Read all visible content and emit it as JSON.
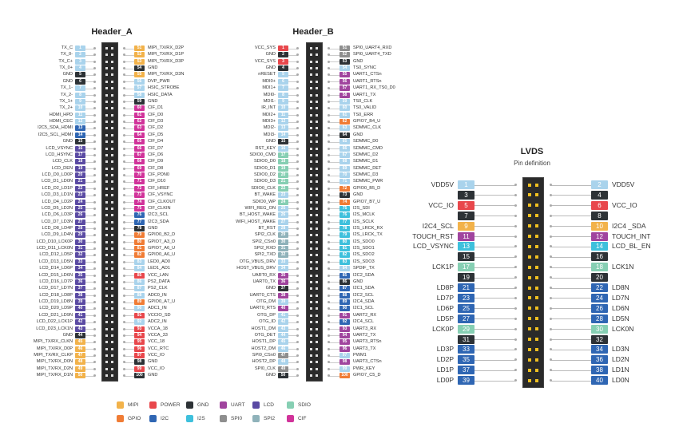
{
  "colors": {
    "MIPI": "#f2b24a",
    "POWER": "#e8474c",
    "GND": "#2d3236",
    "UART": "#a0449e",
    "LCD": "#5a4aa3",
    "SDIO": "#86cfb3",
    "GPIO": "#f07c35",
    "I2C": "#2f66b3",
    "I2S": "#3ec0dc",
    "SPI0": "#8e8e8e",
    "SPI2": "#8fb2ba",
    "CIF": "#d1339a",
    "other": "#a9d3ec"
  },
  "header_a": {
    "title": "Header_A",
    "left": [
      [
        1,
        "TX_C",
        "other"
      ],
      [
        2,
        "TX_0-",
        "other"
      ],
      [
        3,
        "TX_C+",
        "other"
      ],
      [
        4,
        "TX_0+",
        "other"
      ],
      [
        5,
        "GND",
        "GND"
      ],
      [
        6,
        "GND",
        "GND"
      ],
      [
        7,
        "TX_1-",
        "other"
      ],
      [
        8,
        "TX_2-",
        "other"
      ],
      [
        9,
        "TX_1+",
        "other"
      ],
      [
        10,
        "TX_2+",
        "other"
      ],
      [
        11,
        "HDMI_HPD",
        "other"
      ],
      [
        12,
        "HDMI_CEC",
        "other"
      ],
      [
        13,
        "I2C5_SDA_HDMI",
        "I2C"
      ],
      [
        14,
        "I2C5_SCL_HDMI",
        "I2C"
      ],
      [
        15,
        "GND",
        "GND"
      ],
      [
        16,
        "LCD_VSYNC",
        "LCD"
      ],
      [
        17,
        "LCD_HSYNC",
        "LCD"
      ],
      [
        18,
        "LCD_CLK",
        "LCD"
      ],
      [
        19,
        "LCD_DEN",
        "LCD"
      ],
      [
        20,
        "LCD_D0_LD0P",
        "LCD"
      ],
      [
        21,
        "LCD_D1_LD0N",
        "LCD"
      ],
      [
        22,
        "LCD_D2_LD1P",
        "LCD"
      ],
      [
        23,
        "LCD_D3_LD1N",
        "LCD"
      ],
      [
        24,
        "LCD_D4_LD2P",
        "LCD"
      ],
      [
        25,
        "LCD_D5_LD2N",
        "LCD"
      ],
      [
        26,
        "LCD_D6_LD3P",
        "LCD"
      ],
      [
        27,
        "LCD_D7_LD3N",
        "LCD"
      ],
      [
        28,
        "LCD_D8_LD4P",
        "LCD"
      ],
      [
        29,
        "LCD_D9_LD4N",
        "LCD"
      ],
      [
        30,
        "LCD_D10_LCK0P",
        "LCD"
      ],
      [
        31,
        "LCD_D11_LCK0N",
        "LCD"
      ],
      [
        32,
        "LCD_D12_LD5P",
        "LCD"
      ],
      [
        33,
        "LCD_D13_LD5N",
        "LCD"
      ],
      [
        34,
        "LCD_D14_LD6P",
        "LCD"
      ],
      [
        35,
        "LCD_D15_LD6N",
        "LCD"
      ],
      [
        36,
        "LCD_D16_LD7P",
        "LCD"
      ],
      [
        37,
        "LCD_D17_LD7N",
        "LCD"
      ],
      [
        38,
        "LCD_D18_LD8P",
        "LCD"
      ],
      [
        39,
        "LCD_D19_LD8N",
        "LCD"
      ],
      [
        40,
        "LCD_D20_LD9P",
        "LCD"
      ],
      [
        41,
        "LCD_D21_LD9N",
        "LCD"
      ],
      [
        42,
        "LCD_D22_LCK1P",
        "LCD"
      ],
      [
        43,
        "LCD_D23_LCK1N",
        "LCD"
      ],
      [
        44,
        "GND",
        "GND"
      ],
      [
        45,
        "MIPI_TX/RX_CLKN",
        "MIPI"
      ],
      [
        46,
        "MIPI_TX/RX_D0P",
        "MIPI"
      ],
      [
        47,
        "MIPI_TX/RX_CLKP",
        "MIPI"
      ],
      [
        48,
        "MIPI_TX/RX_D0N",
        "MIPI"
      ],
      [
        49,
        "MIPI_TX/RX_D2N",
        "MIPI"
      ],
      [
        50,
        "MIPI_TX/RX_D1N",
        "MIPI"
      ]
    ],
    "right": [
      [
        51,
        "MIPI_TX/RX_D2P",
        "MIPI"
      ],
      [
        52,
        "MIPI_TX/RX_D1P",
        "MIPI"
      ],
      [
        53,
        "MIPI_TX/RX_D3P",
        "MIPI"
      ],
      [
        54,
        "GND",
        "GND"
      ],
      [
        55,
        "MIPI_TX/RX_D3N",
        "MIPI"
      ],
      [
        56,
        "DVP_PWR",
        "other"
      ],
      [
        57,
        "HSIC_STROBE",
        "other"
      ],
      [
        58,
        "HSIC_DATA",
        "other"
      ],
      [
        59,
        "GND",
        "GND"
      ],
      [
        60,
        "CIF_D1",
        "CIF"
      ],
      [
        61,
        "CIF_D0",
        "CIF"
      ],
      [
        62,
        "CIF_D3",
        "CIF"
      ],
      [
        63,
        "CIF_D2",
        "CIF"
      ],
      [
        64,
        "CIF_D5",
        "CIF"
      ],
      [
        65,
        "CIF_D4",
        "CIF"
      ],
      [
        66,
        "CIF_D7",
        "CIF"
      ],
      [
        67,
        "CIF_D6",
        "CIF"
      ],
      [
        68,
        "CIF_D9",
        "CIF"
      ],
      [
        69,
        "CIF_D8",
        "CIF"
      ],
      [
        70,
        "CIF_PDN0",
        "CIF"
      ],
      [
        71,
        "CIF_D10",
        "CIF"
      ],
      [
        72,
        "CIF_HREF",
        "CIF"
      ],
      [
        73,
        "CIF_VSYNC",
        "CIF"
      ],
      [
        74,
        "CIF_CLKOUT",
        "CIF"
      ],
      [
        75,
        "CIF_CLKIN",
        "CIF"
      ],
      [
        76,
        "I2C3_SCL",
        "I2C"
      ],
      [
        77,
        "I2C3_SDA",
        "I2C"
      ],
      [
        78,
        "GND",
        "GND"
      ],
      [
        79,
        "GPIO0_B2_D",
        "GPIO"
      ],
      [
        80,
        "GPIO7_A3_D",
        "GPIO"
      ],
      [
        81,
        "GPIO7_A6_U",
        "GPIO"
      ],
      [
        82,
        "GPIO0_A6_U",
        "GPIO"
      ],
      [
        83,
        "LED0_AD0",
        "other"
      ],
      [
        84,
        "LED1_AD1",
        "other"
      ],
      [
        85,
        "VCC_LAN",
        "POWER"
      ],
      [
        86,
        "PS2_DATA",
        "other"
      ],
      [
        87,
        "PS2_CLK",
        "other"
      ],
      [
        88,
        "ADC0_IN",
        "other"
      ],
      [
        89,
        "GPIO0_A7_U",
        "GPIO"
      ],
      [
        90,
        "ADC1_IN",
        "other"
      ],
      [
        91,
        "VCCIO_SD",
        "POWER"
      ],
      [
        92,
        "ADC2_IN",
        "other"
      ],
      [
        93,
        "VCCA_18",
        "POWER"
      ],
      [
        94,
        "VCCA_33",
        "POWER"
      ],
      [
        95,
        "VCC_18",
        "POWER"
      ],
      [
        96,
        "VCC_RTC",
        "POWER"
      ],
      [
        97,
        "VCC_IO",
        "POWER"
      ],
      [
        98,
        "GND",
        "GND"
      ],
      [
        99,
        "VCC_IO",
        "POWER"
      ],
      [
        100,
        "GND",
        "GND"
      ]
    ]
  },
  "header_b": {
    "title": "Header_B",
    "left": [
      [
        1,
        "VCC_SYS",
        "POWER"
      ],
      [
        2,
        "GND",
        "GND"
      ],
      [
        3,
        "VCC_SYS",
        "POWER"
      ],
      [
        4,
        "GND",
        "GND"
      ],
      [
        5,
        "nRESET",
        "other"
      ],
      [
        6,
        "MDI0+",
        "other"
      ],
      [
        7,
        "MDI1+",
        "other"
      ],
      [
        8,
        "MDI0-",
        "other"
      ],
      [
        9,
        "MDI1-",
        "other"
      ],
      [
        10,
        "IR_INT",
        "other"
      ],
      [
        11,
        "MDI2+",
        "other"
      ],
      [
        12,
        "MDI3+",
        "other"
      ],
      [
        13,
        "MDI2-",
        "other"
      ],
      [
        14,
        "MDI3-",
        "other"
      ],
      [
        15,
        "GND",
        "GND"
      ],
      [
        16,
        "RST_KEY",
        "other"
      ],
      [
        17,
        "SDIO0_CMD",
        "SDIO"
      ],
      [
        18,
        "SDIO0_D0",
        "SDIO"
      ],
      [
        19,
        "SDIO0_D1",
        "SDIO"
      ],
      [
        20,
        "SDIO0_D2",
        "SDIO"
      ],
      [
        21,
        "SDIO0_D3",
        "SDIO"
      ],
      [
        22,
        "SDIO0_CLK",
        "SDIO"
      ],
      [
        23,
        "BT_WAKE",
        "other"
      ],
      [
        24,
        "SDIO0_WP",
        "SDIO"
      ],
      [
        25,
        "WIFI_REG_ON",
        "other"
      ],
      [
        26,
        "BT_HOST_WAKE",
        "other"
      ],
      [
        27,
        "WIFI_HOST_WAKE",
        "other"
      ],
      [
        28,
        "BT_RST",
        "other"
      ],
      [
        29,
        "SPI2_CLK",
        "SPI2"
      ],
      [
        30,
        "SPI2_CSn0",
        "SPI2"
      ],
      [
        31,
        "SPI2_RXD",
        "SPI2"
      ],
      [
        32,
        "SPI2_TXD",
        "SPI2"
      ],
      [
        33,
        "OTG_VBUS_DRV",
        "other"
      ],
      [
        34,
        "HOST_VBUS_DRV",
        "other"
      ],
      [
        35,
        "UART0_RX",
        "UART"
      ],
      [
        36,
        "UART0_TX",
        "UART"
      ],
      [
        37,
        "GND",
        "GND"
      ],
      [
        38,
        "UART0_CTS",
        "UART"
      ],
      [
        39,
        "OTG_DM",
        "other"
      ],
      [
        40,
        "UART0_RTS",
        "UART"
      ],
      [
        41,
        "OTG_DP",
        "other"
      ],
      [
        42,
        "OTG_ID",
        "other"
      ],
      [
        43,
        "HOST1_DM",
        "other"
      ],
      [
        44,
        "OTG_DET",
        "other"
      ],
      [
        45,
        "HOST1_DP",
        "other"
      ],
      [
        46,
        "HOST2_DM",
        "other"
      ],
      [
        47,
        "SPI0_CSn0",
        "SPI0"
      ],
      [
        48,
        "HOST2_DP",
        "other"
      ],
      [
        49,
        "SPI0_CLK",
        "SPI0"
      ],
      [
        50,
        "GND",
        "GND"
      ]
    ],
    "right": [
      [
        51,
        "SPI0_UART4_RXD",
        "SPI0"
      ],
      [
        52,
        "SPI0_UART4_TXD",
        "SPI0"
      ],
      [
        53,
        "GND",
        "GND"
      ],
      [
        54,
        "TS0_SYNC",
        "other"
      ],
      [
        55,
        "UART1_CTSn",
        "UART"
      ],
      [
        56,
        "UART1_RTSn",
        "UART"
      ],
      [
        57,
        "UART1_RX_TS0_D0",
        "UART"
      ],
      [
        58,
        "UART1_TX",
        "UART"
      ],
      [
        59,
        "TS0_CLK",
        "other"
      ],
      [
        60,
        "TS0_VALID",
        "other"
      ],
      [
        61,
        "TS0_ERR",
        "other"
      ],
      [
        62,
        "GPIO7_B4_U",
        "GPIO"
      ],
      [
        63,
        "SDMMC_CLK",
        "other"
      ],
      [
        64,
        "GND",
        "GND"
      ],
      [
        65,
        "SDMMC_D0",
        "other"
      ],
      [
        66,
        "SDMMC_CMD",
        "other"
      ],
      [
        67,
        "SDMMC_D2",
        "other"
      ],
      [
        68,
        "SDMMC_D1",
        "other"
      ],
      [
        69,
        "SDMMC_DET",
        "other"
      ],
      [
        70,
        "SDMMC_D3",
        "other"
      ],
      [
        71,
        "SDMMC_PWR",
        "other"
      ],
      [
        72,
        "GPIO0_B5_D",
        "GPIO"
      ],
      [
        73,
        "GND",
        "GND"
      ],
      [
        74,
        "GPIO7_B7_U",
        "GPIO"
      ],
      [
        75,
        "I2S_SDI",
        "I2S"
      ],
      [
        76,
        "I2S_MCLK",
        "I2S"
      ],
      [
        77,
        "I2S_SCLK",
        "I2S"
      ],
      [
        78,
        "I2S_LRCK_RX",
        "I2S"
      ],
      [
        79,
        "I2S_LRCK_TX",
        "I2S"
      ],
      [
        80,
        "I2S_SDO0",
        "I2S"
      ],
      [
        81,
        "I2S_SDO1",
        "I2S"
      ],
      [
        82,
        "I2S_SDO2",
        "I2S"
      ],
      [
        83,
        "I2S_SDO3",
        "I2S"
      ],
      [
        84,
        "SPDIF_TX",
        "other"
      ],
      [
        85,
        "I2C2_SDA",
        "I2C"
      ],
      [
        86,
        "GND",
        "GND"
      ],
      [
        87,
        "I2C1_SDA",
        "I2C"
      ],
      [
        88,
        "I2C2_SCL",
        "I2C"
      ],
      [
        89,
        "I2C4_SDA",
        "I2C"
      ],
      [
        90,
        "I2C1_SCL",
        "I2C"
      ],
      [
        91,
        "UART2_RX",
        "UART"
      ],
      [
        92,
        "I2C4_SCL",
        "I2C"
      ],
      [
        93,
        "UART3_RX",
        "UART"
      ],
      [
        94,
        "UART2_TX",
        "UART"
      ],
      [
        95,
        "UART3_RTSn",
        "UART"
      ],
      [
        96,
        "UART3_TX",
        "UART"
      ],
      [
        97,
        "PWM1",
        "other"
      ],
      [
        98,
        "UART3_CTSn",
        "UART"
      ],
      [
        99,
        "PWR_KEY",
        "other"
      ],
      [
        100,
        "GPIO7_C5_D",
        "GPIO"
      ]
    ]
  },
  "lvds": {
    "title": "LVDS",
    "subtitle": "Pin definition",
    "left": [
      [
        1,
        "VDD5V",
        "other"
      ],
      [
        3,
        "",
        "GND"
      ],
      [
        5,
        "VCC_IO",
        "POWER"
      ],
      [
        7,
        "",
        "GND"
      ],
      [
        9,
        "I2C4_SCL",
        "MIPI"
      ],
      [
        11,
        "TOUCH_RST",
        "UART"
      ],
      [
        13,
        "LCD_VSYNC",
        "I2S"
      ],
      [
        15,
        "",
        "GND"
      ],
      [
        17,
        "LCK1P",
        "SDIO"
      ],
      [
        19,
        "",
        "GND"
      ],
      [
        21,
        "LD8P",
        "I2C"
      ],
      [
        23,
        "LD7P",
        "I2C"
      ],
      [
        25,
        "LD6P",
        "I2C"
      ],
      [
        27,
        "LD5P",
        "I2C"
      ],
      [
        29,
        "LCK0P",
        "SDIO"
      ],
      [
        31,
        "",
        "GND"
      ],
      [
        33,
        "LD3P",
        "I2C"
      ],
      [
        35,
        "LD2P",
        "I2C"
      ],
      [
        37,
        "LD1P",
        "I2C"
      ],
      [
        39,
        "LD0P",
        "I2C"
      ]
    ],
    "right": [
      [
        2,
        "VDD5V",
        "other"
      ],
      [
        4,
        "",
        "GND"
      ],
      [
        6,
        "VCC_IO",
        "POWER"
      ],
      [
        8,
        "",
        "GND"
      ],
      [
        10,
        "I2C4 _SDA",
        "MIPI"
      ],
      [
        12,
        "TOUCH_INT",
        "UART"
      ],
      [
        14,
        "LCD_BL_EN",
        "I2S"
      ],
      [
        16,
        "",
        "GND"
      ],
      [
        18,
        "LCK1N",
        "SDIO"
      ],
      [
        20,
        "",
        "GND"
      ],
      [
        22,
        "LD8N",
        "I2C"
      ],
      [
        24,
        "LD7N",
        "I2C"
      ],
      [
        26,
        "LD6N",
        "I2C"
      ],
      [
        28,
        "LD5N",
        "I2C"
      ],
      [
        30,
        "LCK0N",
        "SDIO"
      ],
      [
        32,
        "",
        "GND"
      ],
      [
        34,
        "LD3N",
        "I2C"
      ],
      [
        36,
        "LD2N",
        "I2C"
      ],
      [
        38,
        "LD1N",
        "I2C"
      ],
      [
        40,
        "LD0N",
        "I2C"
      ]
    ]
  },
  "legend": [
    {
      "label": "MIPI",
      "type": "MIPI"
    },
    {
      "label": "POWER",
      "type": "POWER"
    },
    {
      "label": "GND",
      "type": "GND"
    },
    {
      "label": "UART",
      "type": "UART"
    },
    {
      "label": "LCD",
      "type": "LCD"
    },
    {
      "label": "SDIO",
      "type": "SDIO"
    },
    {
      "label": "GPIO",
      "type": "GPIO"
    },
    {
      "label": "I2C",
      "type": "I2C"
    },
    {
      "label": "I2S",
      "type": "I2S"
    },
    {
      "label": "SPI0",
      "type": "SPI0"
    },
    {
      "label": "SPI2",
      "type": "SPI2"
    },
    {
      "label": "CIF",
      "type": "CIF"
    }
  ]
}
